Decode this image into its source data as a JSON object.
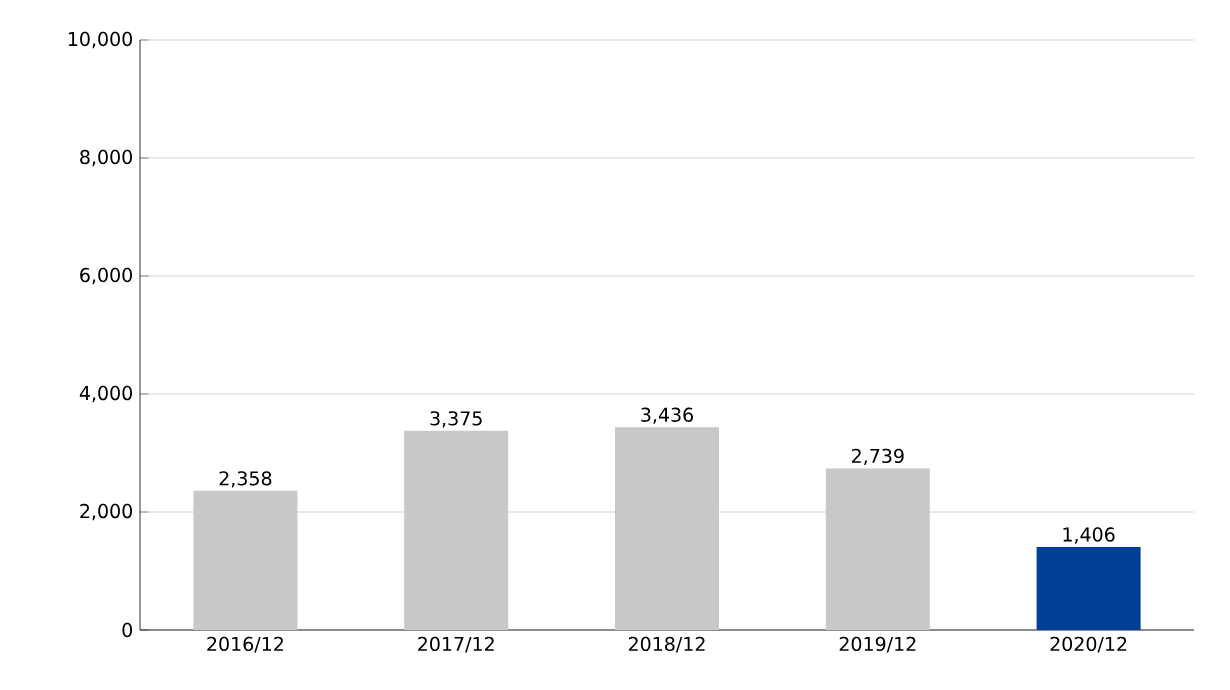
{
  "chart_data": {
    "type": "bar",
    "categories": [
      "2016/12",
      "2017/12",
      "2018/12",
      "2019/12",
      "2020/12"
    ],
    "values": [
      2358,
      3375,
      3436,
      2739,
      1406
    ],
    "value_labels": [
      "2,358",
      "3,375",
      "3,436",
      "2,739",
      "1,406"
    ],
    "colors": [
      "#c8c8c8",
      "#c8c8c8",
      "#c8c8c8",
      "#c8c8c8",
      "#003f98"
    ],
    "ylim": [
      0,
      10000
    ],
    "yticks": [
      {
        "value": 0,
        "label": "0"
      },
      {
        "value": 2000,
        "label": "2,000"
      },
      {
        "value": 4000,
        "label": "4,000"
      },
      {
        "value": 6000,
        "label": "6,000"
      },
      {
        "value": 8000,
        "label": "8,000"
      },
      {
        "value": 10000,
        "label": "10,000"
      }
    ],
    "grid": "y"
  }
}
